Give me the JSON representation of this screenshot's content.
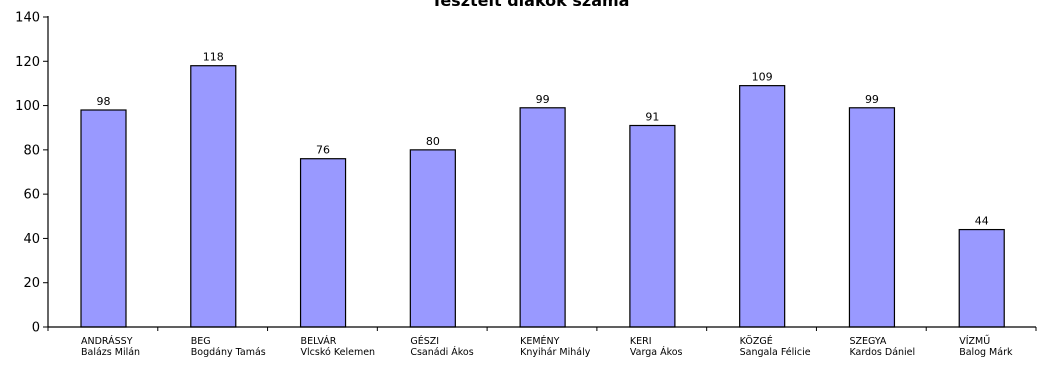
{
  "chart_data": {
    "type": "bar",
    "title": "Tesztelt diákok száma",
    "categories": [
      {
        "school": "ANDRÁSSY",
        "teacher": "Balázs Milán"
      },
      {
        "school": "BEG",
        "teacher": "Bogdány Tamás"
      },
      {
        "school": "BELVÁR",
        "teacher": "Vlcskó Kelemen"
      },
      {
        "school": "GÉSZI",
        "teacher": "Csanádi Ákos"
      },
      {
        "school": "KEMÉNY",
        "teacher": "Knyihár Mihály"
      },
      {
        "school": "KERI",
        "teacher": "Varga Ákos"
      },
      {
        "school": "KÖZGÉ",
        "teacher": "Sangala Félicie"
      },
      {
        "school": "SZEGYA",
        "teacher": "Kardos Dániel"
      },
      {
        "school": "VÍZMŰ",
        "teacher": "Balog Márk"
      }
    ],
    "values": [
      98,
      118,
      76,
      80,
      99,
      91,
      109,
      99,
      44
    ],
    "ylim": [
      0,
      140
    ],
    "yticks": [
      0,
      20,
      40,
      60,
      80,
      100,
      120,
      140
    ],
    "xlabel": "",
    "ylabel": "",
    "grid": false,
    "bar_color": "#9999ff",
    "bar_edge_color": "#000000"
  }
}
